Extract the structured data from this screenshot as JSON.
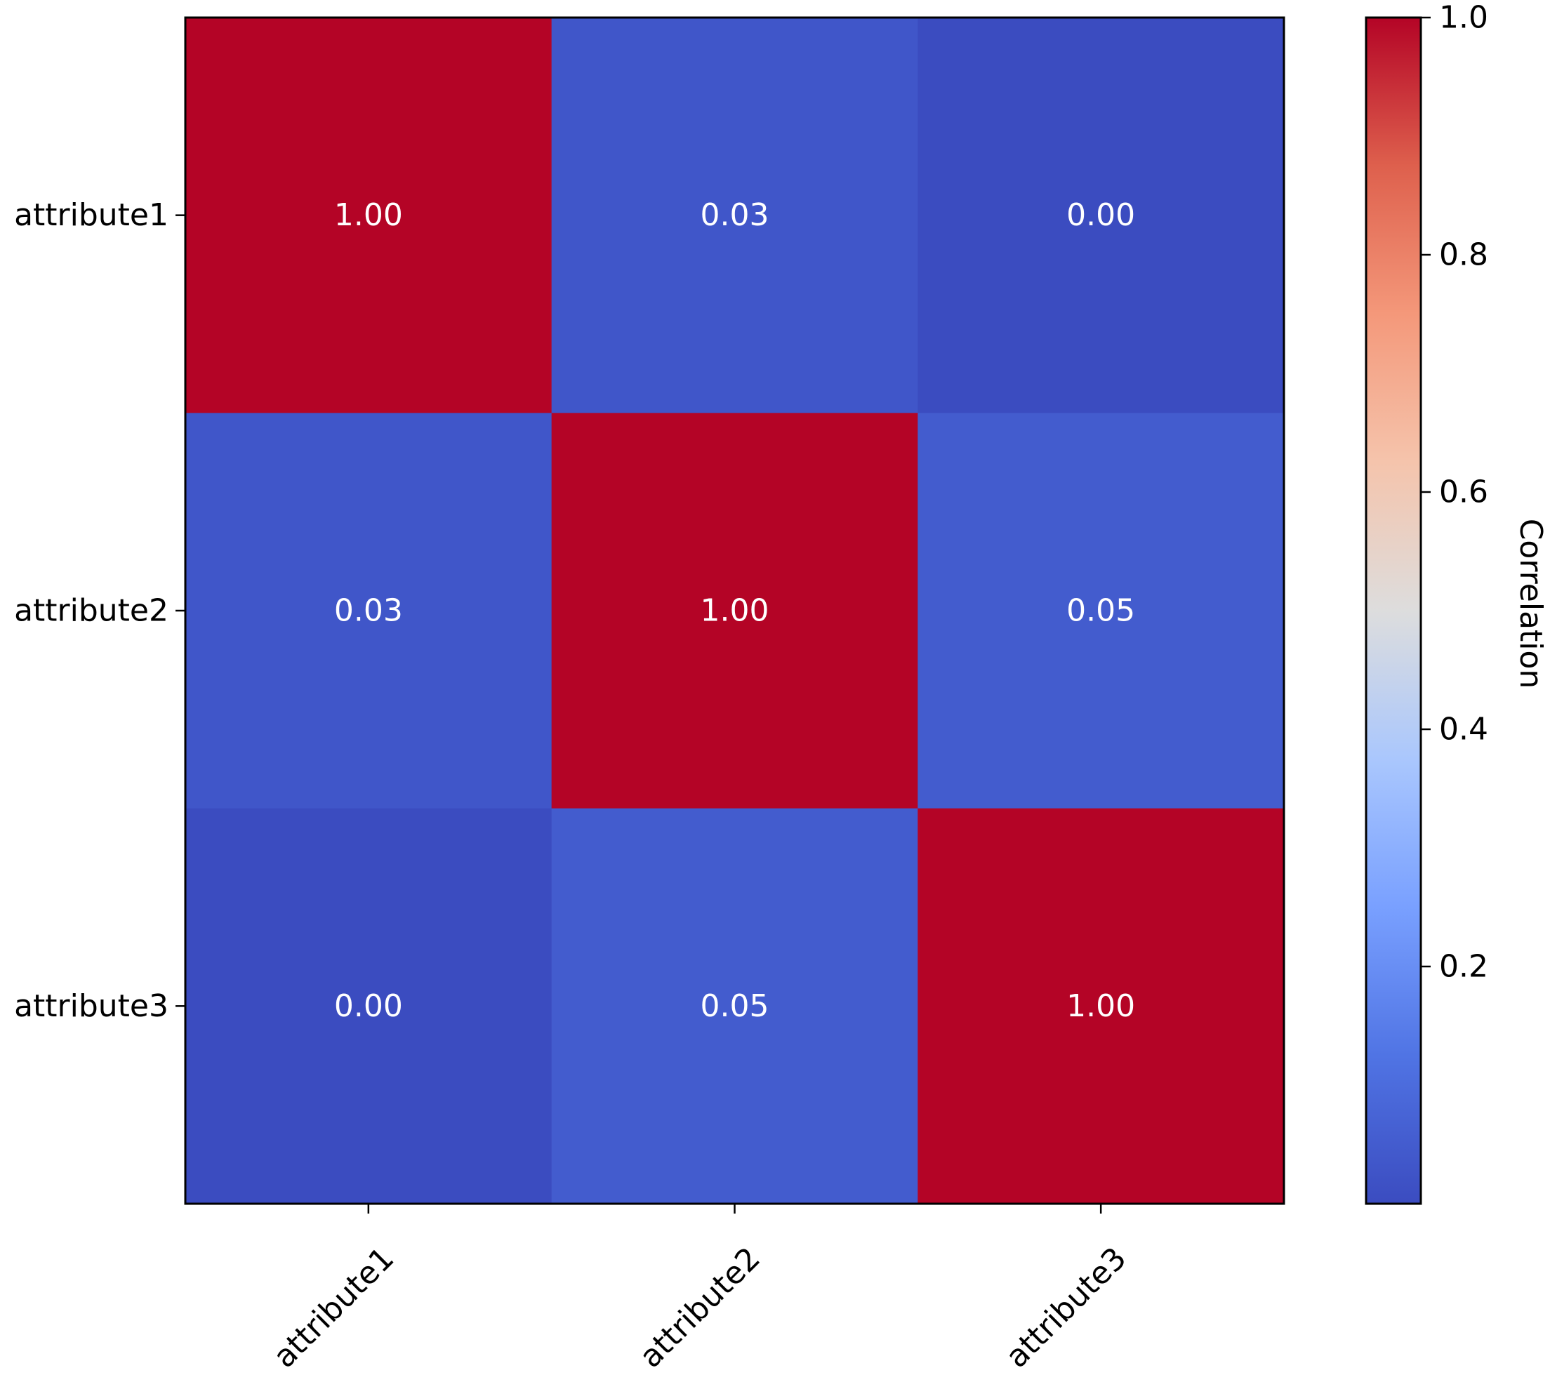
{
  "chart_data": {
    "type": "heatmap",
    "title": "",
    "row_labels": [
      "attribute1",
      "attribute2",
      "attribute3"
    ],
    "col_labels": [
      "attribute1",
      "attribute2",
      "attribute3"
    ],
    "values": [
      [
        1.0,
        0.03,
        0.0
      ],
      [
        0.03,
        1.0,
        0.05
      ],
      [
        0.0,
        0.05,
        1.0
      ]
    ],
    "cell_labels": [
      [
        "1.00",
        "0.03",
        "0.00"
      ],
      [
        "0.03",
        "1.00",
        "0.05"
      ],
      [
        "0.00",
        "0.05",
        "1.00"
      ]
    ],
    "colormap": "coolwarm",
    "colorbar": {
      "label": "Correlation",
      "vmin": 0.0,
      "vmax": 1.0,
      "ticks": [
        0.2,
        0.4,
        0.6,
        0.8,
        1.0
      ],
      "tick_labels": [
        "0.2",
        "0.4",
        "0.6",
        "0.8",
        "1.0"
      ]
    },
    "colors": {
      "low": "#3b4cc0",
      "mid": "#dddddd",
      "high": "#b40426",
      "cell_text": "#ffffff",
      "axis": "#000000"
    }
  }
}
